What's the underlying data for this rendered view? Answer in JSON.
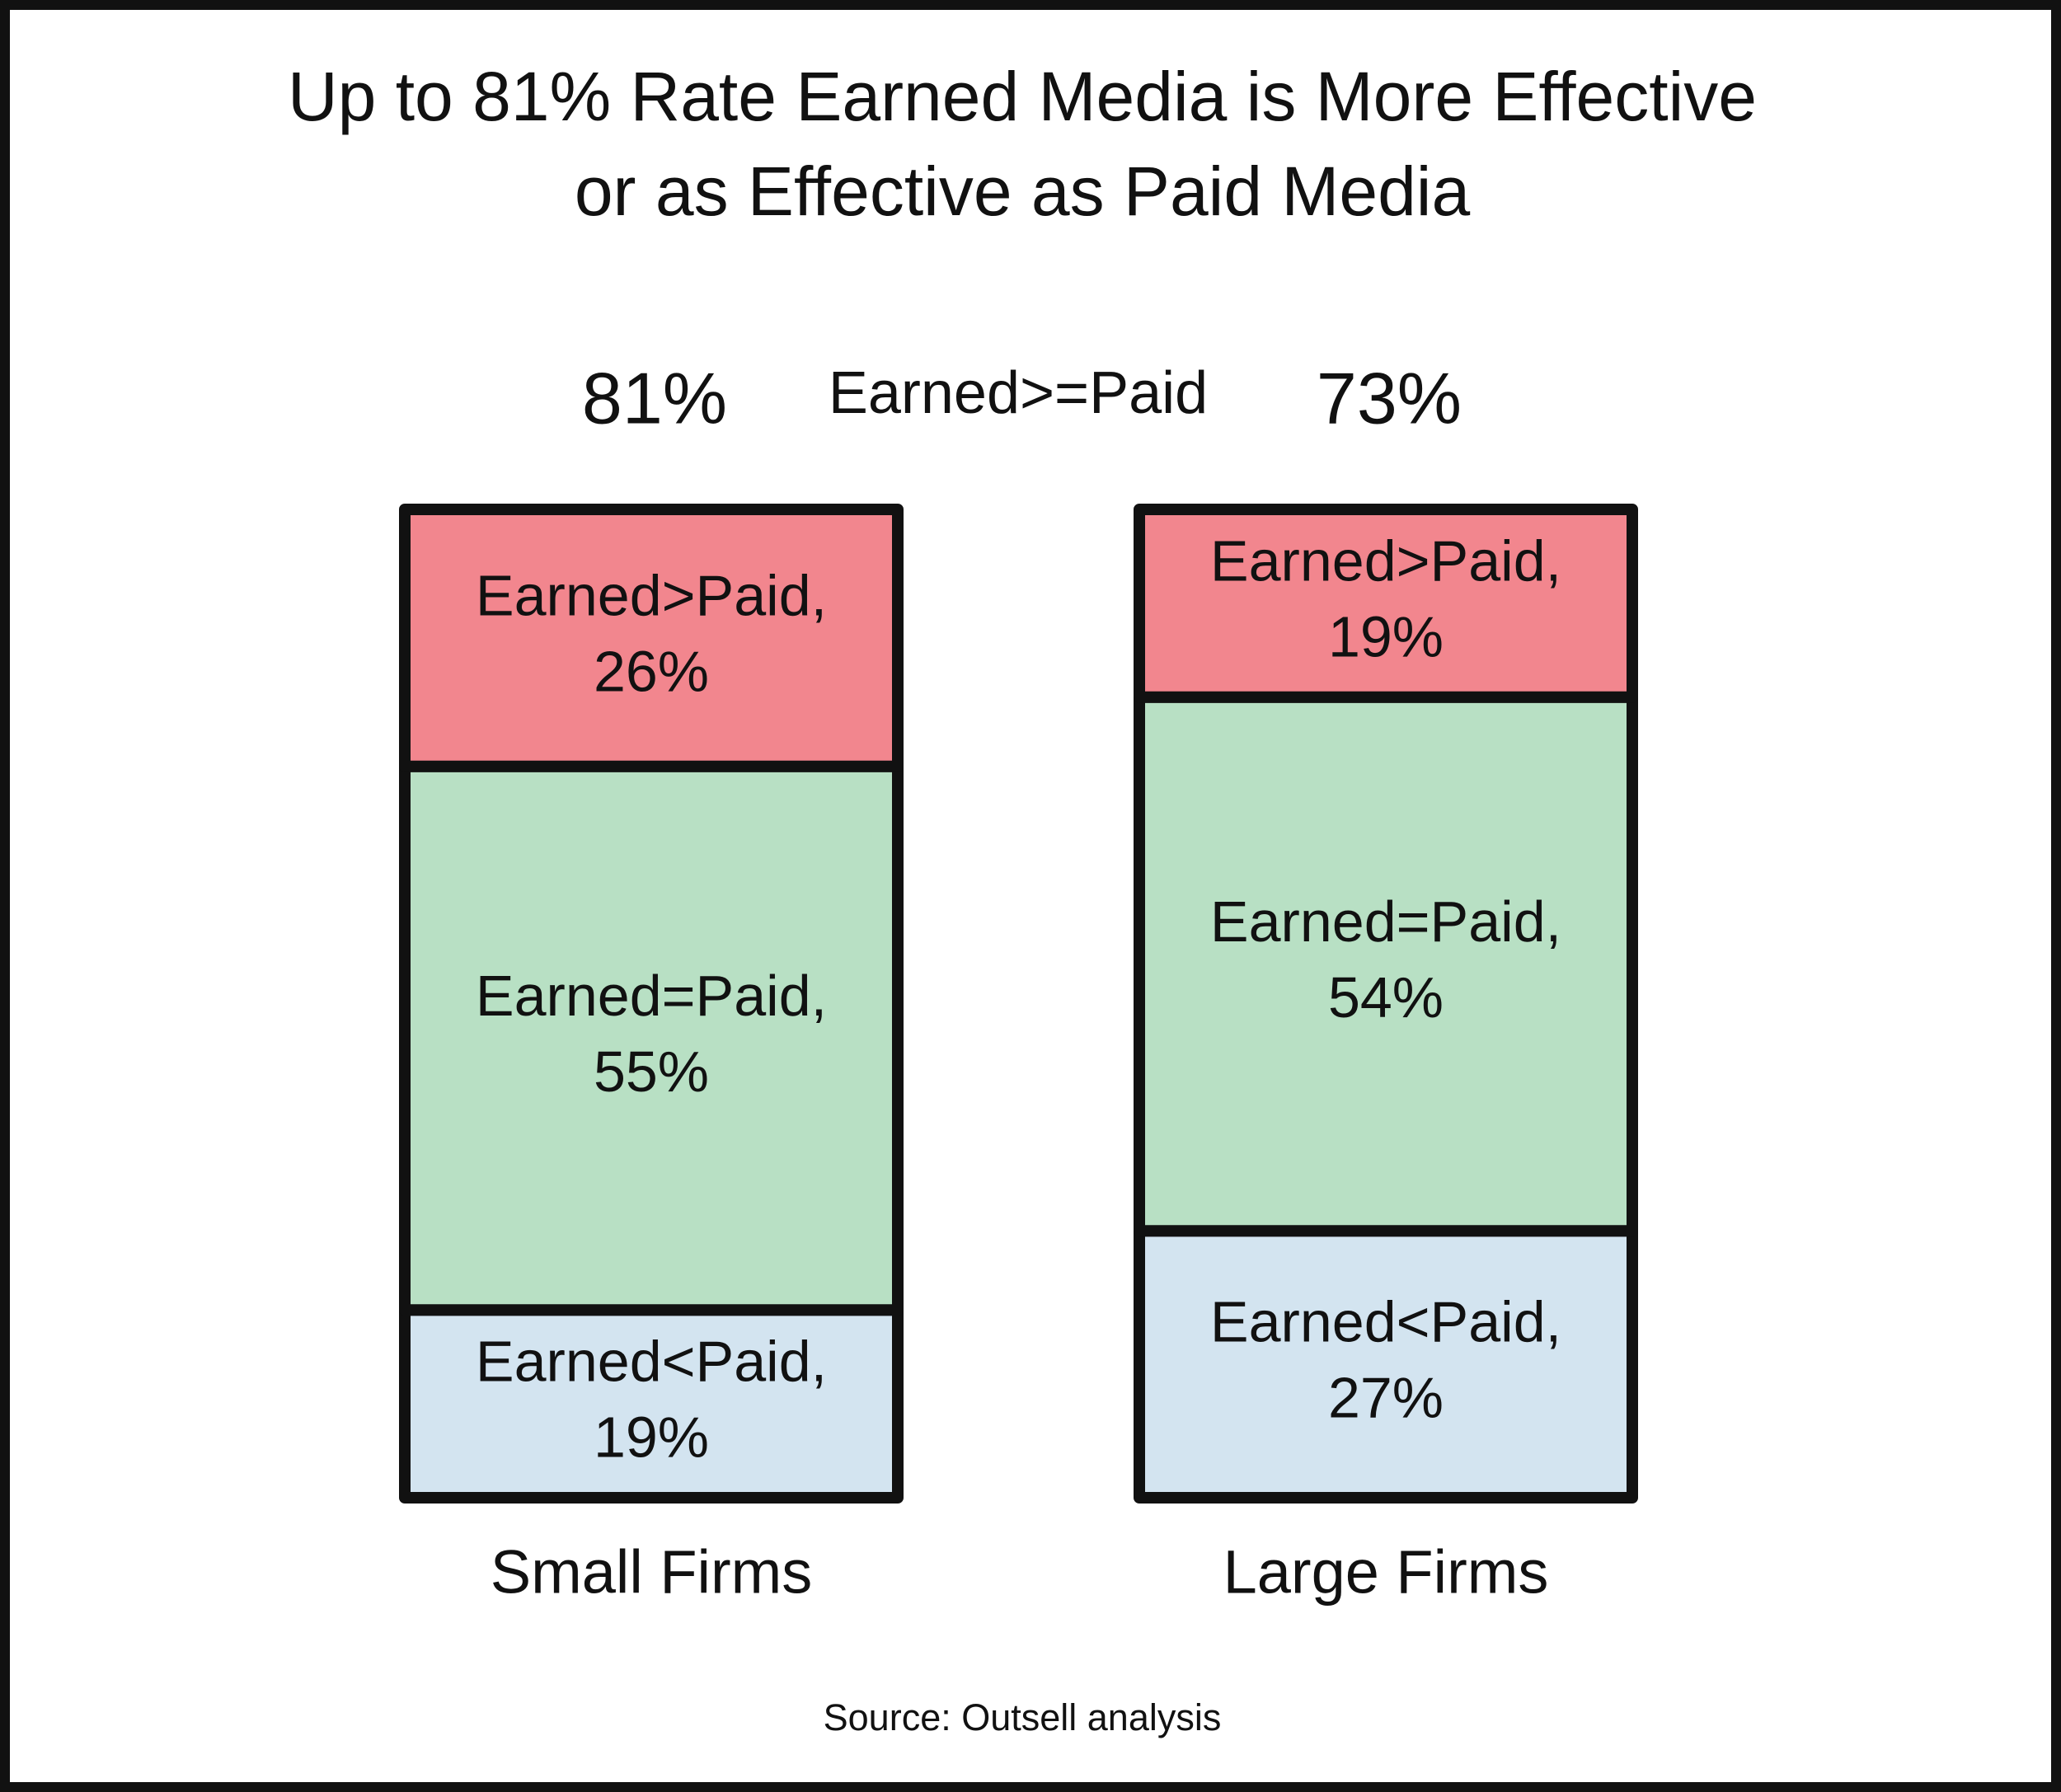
{
  "chart_data": {
    "type": "stacked_bar",
    "title": [
      "Up to 81% Rate Earned Media is More Effective",
      "or as Effective as Paid Media"
    ],
    "categories": [
      "Small Firms",
      "Large Firms"
    ],
    "series": [
      {
        "name": "Earned<Paid,",
        "color": "#d3e4f0",
        "values": [
          19,
          27
        ],
        "value_labels": [
          "19%",
          "27%"
        ]
      },
      {
        "name": "Earned=Paid,",
        "color": "#b8e0c4",
        "values": [
          55,
          54
        ],
        "value_labels": [
          "55%",
          "54%"
        ]
      },
      {
        "name": "Earned>Paid,",
        "color": "#f2868e",
        "values": [
          26,
          19
        ],
        "value_labels": [
          "26%",
          "19%"
        ]
      }
    ],
    "totals": {
      "label": "Earned>=Paid",
      "values": [
        81,
        73
      ],
      "value_labels": [
        "81%",
        "73%"
      ]
    },
    "ylim": [
      0,
      100
    ],
    "source": "Source: Outsell analysis"
  }
}
